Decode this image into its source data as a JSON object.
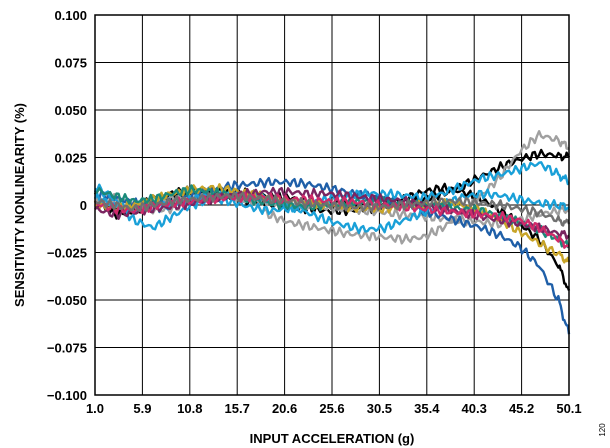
{
  "chart_data": {
    "type": "line",
    "title": "",
    "xlabel": "INPUT ACCELERATION (g)",
    "ylabel": "SENSITIVITY NONLINEARITY (%)",
    "figure_id": "120",
    "x_ticks": [
      "1.0",
      "5.9",
      "10.8",
      "15.7",
      "20.6",
      "25.6",
      "30.5",
      "35.4",
      "40.3",
      "45.2",
      "50.1"
    ],
    "y_ticks": [
      "0.100",
      "0.075",
      "0.050",
      "0.025",
      "0",
      "−0.025",
      "−0.050",
      "−0.075",
      "−0.100"
    ],
    "xlim": [
      1.0,
      50.1
    ],
    "ylim": [
      -0.1,
      0.1
    ],
    "grid": true,
    "x": [
      1.0,
      3.0,
      5.0,
      7.0,
      9.0,
      11.0,
      13.0,
      15.0,
      17.0,
      19.0,
      21.0,
      23.0,
      25.0,
      27.0,
      29.0,
      31.0,
      33.0,
      35.0,
      37.0,
      39.0,
      41.0,
      43.0,
      45.0,
      47.0,
      49.0,
      50.1
    ],
    "series": [
      {
        "color": "#000000",
        "values": [
          0.005,
          -0.005,
          -0.002,
          0.003,
          0.006,
          0.008,
          0.007,
          0.007,
          0.006,
          0.005,
          0.004,
          0.002,
          0.001,
          0.0,
          0.0,
          0.001,
          0.003,
          0.007,
          0.009,
          0.007,
          0.003,
          -0.003,
          -0.01,
          -0.018,
          -0.032,
          -0.045
        ]
      },
      {
        "color": "#000000",
        "values": [
          0.0,
          -0.002,
          -0.004,
          0.002,
          0.005,
          0.006,
          0.006,
          0.004,
          0.002,
          0.001,
          -0.001,
          -0.002,
          -0.003,
          -0.003,
          -0.002,
          -0.001,
          0.0,
          0.003,
          0.006,
          0.01,
          0.015,
          0.02,
          0.024,
          0.027,
          0.026,
          0.025
        ]
      },
      {
        "color": "#a0a0a0",
        "values": [
          0.002,
          0.004,
          0.0,
          -0.003,
          -0.002,
          0.002,
          0.004,
          0.006,
          0.002,
          -0.005,
          -0.009,
          -0.011,
          -0.013,
          -0.015,
          -0.016,
          -0.017,
          -0.018,
          -0.017,
          -0.012,
          -0.005,
          0.005,
          0.015,
          0.028,
          0.037,
          0.034,
          0.03
        ]
      },
      {
        "color": "#a0a0a0",
        "values": [
          0.003,
          0.001,
          -0.002,
          0.0,
          0.003,
          0.004,
          0.005,
          0.004,
          0.003,
          0.002,
          0.001,
          0.0,
          -0.001,
          -0.002,
          -0.003,
          -0.004,
          -0.005,
          -0.006,
          -0.007,
          -0.008,
          -0.009,
          -0.01,
          -0.008,
          -0.005,
          -0.003,
          -0.002
        ]
      },
      {
        "color": "#1f5fa8",
        "values": [
          0.006,
          0.004,
          0.001,
          0.0,
          0.002,
          0.005,
          0.008,
          0.01,
          0.011,
          0.012,
          0.012,
          0.011,
          0.009,
          0.007,
          0.005,
          0.003,
          0.0,
          -0.003,
          -0.006,
          -0.009,
          -0.012,
          -0.016,
          -0.022,
          -0.032,
          -0.05,
          -0.068
        ]
      },
      {
        "color": "#1aa0d8",
        "values": [
          0.01,
          0.003,
          -0.008,
          -0.012,
          -0.006,
          0.0,
          0.003,
          0.002,
          -0.001,
          -0.003,
          -0.002,
          0.0,
          0.003,
          0.005,
          0.006,
          0.006,
          0.005,
          0.004,
          0.006,
          0.01,
          0.014,
          0.016,
          0.019,
          0.022,
          0.016,
          0.012
        ]
      },
      {
        "color": "#1aa0d8",
        "values": [
          0.004,
          0.0,
          -0.003,
          -0.002,
          0.0,
          0.003,
          0.005,
          0.006,
          0.005,
          0.003,
          0.0,
          -0.004,
          -0.008,
          -0.011,
          -0.013,
          -0.012,
          -0.008,
          -0.004,
          0.0,
          0.004,
          0.006,
          0.005,
          0.003,
          0.001,
          0.0,
          -0.001
        ]
      },
      {
        "color": "#c8a428",
        "values": [
          0.0,
          -0.002,
          0.0,
          0.003,
          0.006,
          0.008,
          0.009,
          0.008,
          0.006,
          0.004,
          0.002,
          0.001,
          0.0,
          -0.001,
          -0.002,
          -0.002,
          -0.001,
          0.0,
          0.001,
          0.0,
          -0.003,
          -0.008,
          -0.014,
          -0.02,
          -0.026,
          -0.03
        ]
      },
      {
        "color": "#1a8a7a",
        "values": [
          0.008,
          0.005,
          0.002,
          0.003,
          0.006,
          0.008,
          0.007,
          0.005,
          0.003,
          0.001,
          0.0,
          -0.001,
          0.0,
          0.001,
          0.002,
          0.002,
          0.001,
          0.0,
          -0.001,
          -0.002,
          -0.003,
          -0.006,
          -0.009,
          -0.013,
          -0.018,
          -0.022
        ]
      },
      {
        "color": "#7a2560",
        "values": [
          -0.002,
          -0.005,
          -0.004,
          -0.002,
          -0.001,
          0.001,
          0.003,
          0.005,
          0.006,
          0.007,
          0.007,
          0.006,
          0.006,
          0.005,
          0.004,
          0.003,
          0.002,
          0.0,
          -0.002,
          -0.004,
          -0.006,
          -0.008,
          -0.01,
          -0.012,
          -0.015,
          -0.016
        ]
      },
      {
        "color": "#d02a6a",
        "values": [
          0.001,
          -0.002,
          -0.003,
          -0.001,
          0.001,
          0.002,
          0.003,
          0.004,
          0.004,
          0.004,
          0.003,
          0.003,
          0.002,
          0.002,
          0.001,
          0.0,
          -0.001,
          -0.002,
          -0.003,
          -0.004,
          -0.005,
          -0.006,
          -0.008,
          -0.012,
          -0.018,
          -0.022
        ]
      },
      {
        "color": "#707070",
        "values": [
          0.002,
          0.0,
          -0.002,
          0.0,
          0.002,
          0.003,
          0.004,
          0.005,
          0.004,
          0.003,
          0.002,
          0.001,
          0.0,
          -0.001,
          -0.001,
          -0.001,
          0.0,
          0.001,
          0.002,
          0.002,
          0.001,
          0.0,
          -0.002,
          -0.004,
          -0.008,
          -0.01
        ]
      }
    ]
  }
}
